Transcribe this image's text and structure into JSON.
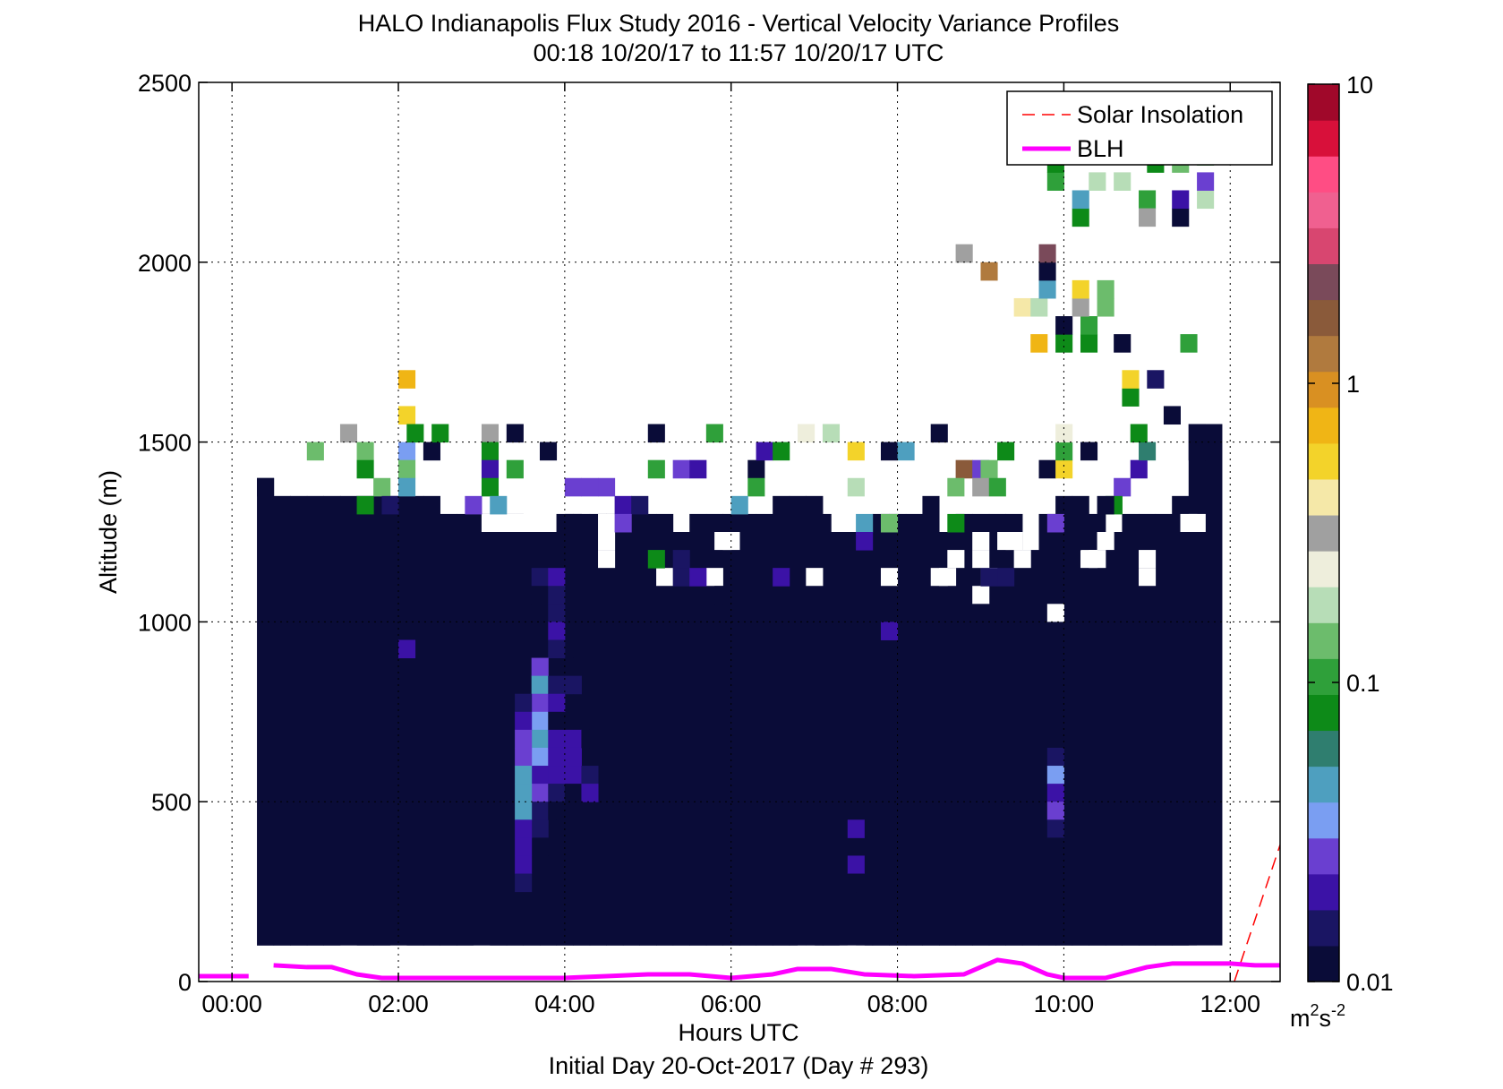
{
  "chart_data": {
    "type": "heatmap",
    "title": "HALO Indianapolis Flux Study 2016 - Vertical Velocity Variance Profiles",
    "subtitle": "00:18 10/20/17 to 11:57 10/20/17  UTC",
    "xlabel": "Hours UTC",
    "footer": "Initial Day 20-Oct-2017 (Day # 293)",
    "ylabel": "Altitude (m)",
    "xlim": [
      -0.4,
      12.6
    ],
    "ylim": [
      0,
      2500
    ],
    "x_ticks": [
      "00:00",
      "02:00",
      "04:00",
      "06:00",
      "08:00",
      "10:00",
      "12:00"
    ],
    "x_tick_values": [
      0,
      2,
      4,
      6,
      8,
      10,
      12
    ],
    "y_ticks": [
      "0",
      "500",
      "1000",
      "1500",
      "2000",
      "2500"
    ],
    "y_tick_values": [
      0,
      500,
      1000,
      1500,
      2000,
      2500
    ],
    "grid": true,
    "color_scale": "log",
    "colorbar_ticks": [
      "10",
      "1",
      "0.1",
      "0.01"
    ],
    "colorbar_tick_values": [
      10,
      1,
      0.1,
      0.01
    ],
    "colorbar_unit": "m²s⁻²",
    "colorbar_unit_base": "m",
    "colorbar_unit_sup1": "2",
    "colorbar_unit_mid": "s",
    "colorbar_unit_sup2": "-2",
    "colorbar_range": [
      0.01,
      10
    ],
    "colorbar_colors": [
      "#0a0c38",
      "#1a1563",
      "#3b12a6",
      "#6a3fd0",
      "#7a9ef2",
      "#4e9fbf",
      "#2f7e6f",
      "#0d8a18",
      "#2fa03a",
      "#6cbc6c",
      "#b7ddb7",
      "#eeeedc",
      "#a0a0a0",
      "#f5e8a8",
      "#f3d32a",
      "#f0b515",
      "#d99022",
      "#b07a3e",
      "#8a5a3a",
      "#7a4a5a",
      "#d84670",
      "#f06090",
      "#ff4d84",
      "#d8103a",
      "#a0082a"
    ],
    "legend": [
      {
        "name": "Solar Insolation",
        "color": "#ff0000",
        "style": "dashed"
      },
      {
        "name": "BLH",
        "color": "#ff00ff",
        "style": "solid"
      }
    ],
    "legend_position": "top-right",
    "time_bin_hours": 0.2,
    "altitude_bin_m": 50,
    "background_variance": 0.01,
    "background_region": {
      "x_start": 0.3,
      "x_end": 11.9,
      "y_bottom": 100,
      "profile_top": [
        1400,
        1350,
        1350,
        1350,
        1350,
        1350,
        1350,
        1350,
        1350,
        1350,
        1350,
        1300,
        1300,
        1300,
        1300,
        1300,
        1250,
        1250,
        1300,
        1300,
        1300,
        1300,
        1300,
        1300,
        1300,
        1250,
        1300,
        1300,
        1300,
        1300,
        1300,
        1350,
        1350,
        1350,
        1250,
        1250,
        1200,
        1300,
        1300,
        1300,
        1350,
        1250,
        1300,
        1300,
        1300,
        1300,
        1200,
        1300,
        1350,
        1350,
        1300,
        1250,
        1300,
        1300,
        1300,
        1350,
        1550,
        1550
      ]
    },
    "gaps": [
      [
        1.3,
        0
      ],
      [
        1.9,
        0
      ],
      [
        2.9,
        0
      ],
      [
        6.8,
        0
      ],
      [
        7.3,
        0
      ],
      [
        7.4,
        0
      ],
      [
        11.5,
        0
      ],
      [
        11.6,
        0
      ],
      [
        11.7,
        0
      ],
      [
        11.8,
        0
      ],
      [
        5.1,
        1100
      ],
      [
        5.7,
        1100
      ],
      [
        6.9,
        1100
      ],
      [
        7.8,
        1100
      ],
      [
        8.4,
        1100
      ],
      [
        8.5,
        1100
      ],
      [
        9.0,
        1100
      ],
      [
        10.9,
        1100
      ],
      [
        4.4,
        1150
      ],
      [
        8.6,
        1150
      ],
      [
        8.9,
        1150
      ],
      [
        9.4,
        1150
      ],
      [
        10.2,
        1150
      ],
      [
        10.3,
        1150
      ],
      [
        10.9,
        1150
      ],
      [
        8.9,
        1050
      ],
      [
        9.8,
        1000
      ],
      [
        3.0,
        1250
      ],
      [
        3.1,
        1250
      ],
      [
        3.2,
        1250
      ],
      [
        3.3,
        1250
      ],
      [
        3.4,
        1250
      ],
      [
        4.4,
        1250
      ],
      [
        4.4,
        1200
      ],
      [
        5.8,
        1200
      ],
      [
        5.9,
        1200
      ],
      [
        8.9,
        1200
      ],
      [
        9.2,
        1200
      ],
      [
        9.3,
        1200
      ],
      [
        10.4,
        1200
      ],
      [
        11.4,
        1250
      ],
      [
        11.5,
        1250
      ]
    ],
    "cells": [
      {
        "x": 0.3,
        "y": 1350,
        "v": 0.01
      },
      {
        "x": 2.0,
        "y": 900,
        "v": 0.02
      },
      {
        "x": 3.6,
        "y": 1100,
        "v": 0.014
      },
      {
        "x": 3.6,
        "y": 1050,
        "v": 0.012
      },
      {
        "x": 3.6,
        "y": 1000,
        "v": 0.012
      },
      {
        "x": 3.6,
        "y": 950,
        "v": 0.011
      },
      {
        "x": 3.8,
        "y": 1100,
        "v": 0.018
      },
      {
        "x": 3.8,
        "y": 1050,
        "v": 0.015
      },
      {
        "x": 3.8,
        "y": 1000,
        "v": 0.016
      },
      {
        "x": 3.8,
        "y": 950,
        "v": 0.02
      },
      {
        "x": 3.8,
        "y": 900,
        "v": 0.016
      },
      {
        "x": 3.6,
        "y": 850,
        "v": 0.03
      },
      {
        "x": 3.6,
        "y": 800,
        "v": 0.04
      },
      {
        "x": 3.6,
        "y": 750,
        "v": 0.027
      },
      {
        "x": 3.6,
        "y": 700,
        "v": 0.033
      },
      {
        "x": 3.6,
        "y": 650,
        "v": 0.045
      },
      {
        "x": 3.6,
        "y": 600,
        "v": 0.035
      },
      {
        "x": 3.6,
        "y": 550,
        "v": 0.02
      },
      {
        "x": 3.6,
        "y": 500,
        "v": 0.026
      },
      {
        "x": 3.6,
        "y": 450,
        "v": 0.016
      },
      {
        "x": 3.6,
        "y": 400,
        "v": 0.017
      },
      {
        "x": 3.6,
        "y": 350,
        "v": 0.012
      },
      {
        "x": 3.4,
        "y": 750,
        "v": 0.017
      },
      {
        "x": 3.4,
        "y": 700,
        "v": 0.022
      },
      {
        "x": 3.4,
        "y": 650,
        "v": 0.025
      },
      {
        "x": 3.4,
        "y": 600,
        "v": 0.026
      },
      {
        "x": 3.4,
        "y": 550,
        "v": 0.04
      },
      {
        "x": 3.4,
        "y": 500,
        "v": 0.04
      },
      {
        "x": 3.4,
        "y": 450,
        "v": 0.045
      },
      {
        "x": 3.4,
        "y": 400,
        "v": 0.022
      },
      {
        "x": 3.4,
        "y": 350,
        "v": 0.021
      },
      {
        "x": 3.4,
        "y": 300,
        "v": 0.02
      },
      {
        "x": 3.4,
        "y": 250,
        "v": 0.015
      },
      {
        "x": 3.8,
        "y": 800,
        "v": 0.014
      },
      {
        "x": 3.8,
        "y": 750,
        "v": 0.02
      },
      {
        "x": 3.8,
        "y": 700,
        "v": 0.013
      },
      {
        "x": 3.8,
        "y": 650,
        "v": 0.018
      },
      {
        "x": 3.8,
        "y": 600,
        "v": 0.02
      },
      {
        "x": 3.8,
        "y": 550,
        "v": 0.02
      },
      {
        "x": 3.8,
        "y": 500,
        "v": 0.014
      },
      {
        "x": 3.8,
        "y": 450,
        "v": 0.013
      },
      {
        "x": 4.0,
        "y": 850,
        "v": 0.011
      },
      {
        "x": 4.0,
        "y": 800,
        "v": 0.017
      },
      {
        "x": 4.0,
        "y": 650,
        "v": 0.018
      },
      {
        "x": 4.0,
        "y": 600,
        "v": 0.019
      },
      {
        "x": 4.0,
        "y": 550,
        "v": 0.019
      },
      {
        "x": 4.0,
        "y": 500,
        "v": 0.012
      },
      {
        "x": 4.2,
        "y": 650,
        "v": 0.013
      },
      {
        "x": 4.2,
        "y": 550,
        "v": 0.014
      },
      {
        "x": 4.2,
        "y": 500,
        "v": 0.022
      },
      {
        "x": 7.4,
        "y": 450,
        "v": 0.011
      },
      {
        "x": 7.4,
        "y": 400,
        "v": 0.018
      },
      {
        "x": 7.4,
        "y": 300,
        "v": 0.021
      },
      {
        "x": 7.4,
        "y": 250,
        "v": 0.012
      },
      {
        "x": 7.8,
        "y": 1000,
        "v": 0.011
      },
      {
        "x": 7.8,
        "y": 950,
        "v": 0.019
      },
      {
        "x": 9.8,
        "y": 600,
        "v": 0.014
      },
      {
        "x": 9.8,
        "y": 550,
        "v": 0.033
      },
      {
        "x": 9.8,
        "y": 500,
        "v": 0.022
      },
      {
        "x": 9.8,
        "y": 450,
        "v": 0.025
      },
      {
        "x": 9.8,
        "y": 400,
        "v": 0.015
      },
      {
        "x": 9.8,
        "y": 350,
        "v": 0.011
      },
      {
        "x": 1.3,
        "y": 1500,
        "v": 0.3
      },
      {
        "x": 0.9,
        "y": 1450,
        "v": 0.13
      },
      {
        "x": 1.5,
        "y": 1450,
        "v": 0.15
      },
      {
        "x": 2.0,
        "y": 1450,
        "v": 0.035
      },
      {
        "x": 2.3,
        "y": 1450,
        "v": 0.011
      },
      {
        "x": 1.5,
        "y": 1400,
        "v": 0.08
      },
      {
        "x": 2.0,
        "y": 1400,
        "v": 0.15
      },
      {
        "x": 1.7,
        "y": 1350,
        "v": 0.13
      },
      {
        "x": 2.0,
        "y": 1350,
        "v": 0.04
      },
      {
        "x": 1.5,
        "y": 1300,
        "v": 0.08
      },
      {
        "x": 1.8,
        "y": 1300,
        "v": 0.014
      },
      {
        "x": 2.0,
        "y": 1650,
        "v": 0.8
      },
      {
        "x": 2.0,
        "y": 1550,
        "v": 0.6
      },
      {
        "x": 2.1,
        "y": 1500,
        "v": 0.08
      },
      {
        "x": 2.4,
        "y": 1500,
        "v": 0.08
      },
      {
        "x": 3.0,
        "y": 1500,
        "v": 0.3
      },
      {
        "x": 3.3,
        "y": 1500,
        "v": 0.011
      },
      {
        "x": 3.0,
        "y": 1450,
        "v": 0.08
      },
      {
        "x": 3.7,
        "y": 1450,
        "v": 0.011
      },
      {
        "x": 3.0,
        "y": 1400,
        "v": 0.018
      },
      {
        "x": 3.3,
        "y": 1400,
        "v": 0.1
      },
      {
        "x": 3.0,
        "y": 1350,
        "v": 0.08
      },
      {
        "x": 2.8,
        "y": 1300,
        "v": 0.025
      },
      {
        "x": 3.1,
        "y": 1300,
        "v": 0.045
      },
      {
        "x": 4.0,
        "y": 1250,
        "v": 0.013
      },
      {
        "x": 4.0,
        "y": 1350,
        "v": 0.03
      },
      {
        "x": 4.2,
        "y": 1350,
        "v": 0.03
      },
      {
        "x": 4.4,
        "y": 1350,
        "v": 0.03
      },
      {
        "x": 4.6,
        "y": 1300,
        "v": 0.021
      },
      {
        "x": 4.8,
        "y": 1300,
        "v": 0.016
      },
      {
        "x": 4.6,
        "y": 1250,
        "v": 0.027
      },
      {
        "x": 5.0,
        "y": 1150,
        "v": 0.08
      },
      {
        "x": 5.3,
        "y": 1150,
        "v": 0.015
      },
      {
        "x": 5.3,
        "y": 1100,
        "v": 0.014
      },
      {
        "x": 5.5,
        "y": 1100,
        "v": 0.022
      },
      {
        "x": 5.8,
        "y": 1050,
        "v": 0.013
      },
      {
        "x": 5.0,
        "y": 1500,
        "v": 0.011
      },
      {
        "x": 5.7,
        "y": 1500,
        "v": 0.12
      },
      {
        "x": 5.0,
        "y": 1400,
        "v": 0.1
      },
      {
        "x": 5.3,
        "y": 1400,
        "v": 0.025
      },
      {
        "x": 5.5,
        "y": 1400,
        "v": 0.02
      },
      {
        "x": 6.2,
        "y": 1400,
        "v": 0.011
      },
      {
        "x": 6.2,
        "y": 1350,
        "v": 0.1
      },
      {
        "x": 6.0,
        "y": 1300,
        "v": 0.04
      },
      {
        "x": 6.3,
        "y": 1450,
        "v": 0.02
      },
      {
        "x": 6.5,
        "y": 1450,
        "v": 0.08
      },
      {
        "x": 6.8,
        "y": 1500,
        "v": 0.25
      },
      {
        "x": 7.1,
        "y": 1500,
        "v": 0.2
      },
      {
        "x": 6.5,
        "y": 1100,
        "v": 0.018
      },
      {
        "x": 7.0,
        "y": 1250,
        "v": 0.013
      },
      {
        "x": 7.4,
        "y": 1450,
        "v": 0.5
      },
      {
        "x": 7.4,
        "y": 1350,
        "v": 0.2
      },
      {
        "x": 7.5,
        "y": 1250,
        "v": 0.04
      },
      {
        "x": 7.8,
        "y": 1250,
        "v": 0.13
      },
      {
        "x": 7.5,
        "y": 1200,
        "v": 0.02
      },
      {
        "x": 7.8,
        "y": 1450,
        "v": 0.011
      },
      {
        "x": 8.0,
        "y": 1450,
        "v": 0.05
      },
      {
        "x": 8.4,
        "y": 1500,
        "v": 0.011
      },
      {
        "x": 8.7,
        "y": 1400,
        "v": 1.5
      },
      {
        "x": 8.9,
        "y": 1400,
        "v": 0.03
      },
      {
        "x": 9.0,
        "y": 1400,
        "v": 0.13
      },
      {
        "x": 8.6,
        "y": 1350,
        "v": 0.14
      },
      {
        "x": 8.9,
        "y": 1350,
        "v": 0.3
      },
      {
        "x": 9.1,
        "y": 1350,
        "v": 0.12
      },
      {
        "x": 9.2,
        "y": 1450,
        "v": 0.08
      },
      {
        "x": 8.6,
        "y": 1250,
        "v": 0.08
      },
      {
        "x": 9.0,
        "y": 1100,
        "v": 0.016
      },
      {
        "x": 9.2,
        "y": 1100,
        "v": 0.016
      },
      {
        "x": 9.8,
        "y": 1250,
        "v": 0.03
      },
      {
        "x": 10.0,
        "y": 1200,
        "v": 0.013
      },
      {
        "x": 9.7,
        "y": 1400,
        "v": 0.011
      },
      {
        "x": 9.9,
        "y": 1400,
        "v": 0.6
      },
      {
        "x": 9.9,
        "y": 1450,
        "v": 0.1
      },
      {
        "x": 10.2,
        "y": 1450,
        "v": 0.011
      },
      {
        "x": 9.9,
        "y": 1500,
        "v": 0.25
      },
      {
        "x": 10.6,
        "y": 1350,
        "v": 0.03
      },
      {
        "x": 10.5,
        "y": 1300,
        "v": 0.08
      },
      {
        "x": 10.4,
        "y": 1300,
        "v": 0.011
      },
      {
        "x": 10.8,
        "y": 1400,
        "v": 0.02
      },
      {
        "x": 10.9,
        "y": 1450,
        "v": 0.06
      },
      {
        "x": 10.8,
        "y": 1500,
        "v": 0.08
      },
      {
        "x": 10.7,
        "y": 1600,
        "v": 0.08
      },
      {
        "x": 10.7,
        "y": 1650,
        "v": 0.6
      },
      {
        "x": 11.0,
        "y": 1650,
        "v": 0.016
      },
      {
        "x": 11.2,
        "y": 1550,
        "v": 0.011
      },
      {
        "x": 11.5,
        "y": 1500,
        "v": 0.011
      },
      {
        "x": 11.5,
        "y": 1450,
        "v": 0.011
      },
      {
        "x": 11.4,
        "y": 1750,
        "v": 0.1
      },
      {
        "x": 10.6,
        "y": 1750,
        "v": 0.011
      },
      {
        "x": 9.6,
        "y": 1750,
        "v": 0.8
      },
      {
        "x": 9.9,
        "y": 1750,
        "v": 0.09
      },
      {
        "x": 10.2,
        "y": 1750,
        "v": 0.09
      },
      {
        "x": 9.9,
        "y": 1800,
        "v": 0.011
      },
      {
        "x": 10.2,
        "y": 1800,
        "v": 0.1
      },
      {
        "x": 9.4,
        "y": 1850,
        "v": 0.4
      },
      {
        "x": 9.6,
        "y": 1850,
        "v": 0.2
      },
      {
        "x": 10.1,
        "y": 1850,
        "v": 0.35
      },
      {
        "x": 10.4,
        "y": 1850,
        "v": 0.14
      },
      {
        "x": 9.7,
        "y": 1900,
        "v": 0.05
      },
      {
        "x": 10.1,
        "y": 1900,
        "v": 0.6
      },
      {
        "x": 10.4,
        "y": 1900,
        "v": 0.13
      },
      {
        "x": 9.7,
        "y": 1950,
        "v": 0.011
      },
      {
        "x": 9.0,
        "y": 1950,
        "v": 1.3
      },
      {
        "x": 9.7,
        "y": 2000,
        "v": 2.0
      },
      {
        "x": 8.7,
        "y": 2000,
        "v": 0.35
      },
      {
        "x": 10.1,
        "y": 2100,
        "v": 0.08
      },
      {
        "x": 10.1,
        "y": 2150,
        "v": 0.05
      },
      {
        "x": 9.8,
        "y": 2200,
        "v": 0.1
      },
      {
        "x": 9.8,
        "y": 2250,
        "v": 0.08
      },
      {
        "x": 10.3,
        "y": 2200,
        "v": 0.16
      },
      {
        "x": 10.6,
        "y": 2200,
        "v": 0.17
      },
      {
        "x": 10.9,
        "y": 2150,
        "v": 0.1
      },
      {
        "x": 10.9,
        "y": 2100,
        "v": 0.3
      },
      {
        "x": 11.3,
        "y": 2100,
        "v": 0.011
      },
      {
        "x": 11.3,
        "y": 2150,
        "v": 0.02
      },
      {
        "x": 11.6,
        "y": 2150,
        "v": 0.18
      },
      {
        "x": 11.6,
        "y": 2200,
        "v": 0.025
      },
      {
        "x": 11.0,
        "y": 2250,
        "v": 0.08
      },
      {
        "x": 11.3,
        "y": 2250,
        "v": 0.13
      },
      {
        "x": 11.6,
        "y": 2270,
        "v": 0.1
      }
    ],
    "blh": {
      "name": "BLH",
      "segments": [
        {
          "x": [
            -0.4,
            0.2
          ],
          "y": [
            15,
            15
          ]
        },
        {
          "x": [
            0.5,
            0.9,
            1.2,
            1.5,
            1.8,
            2.5,
            3.0,
            3.6,
            4.0,
            4.5,
            5.0,
            5.5,
            6.0,
            6.5,
            6.8,
            7.2,
            7.6,
            8.2,
            8.8,
            9.2,
            9.5,
            9.8,
            10.0,
            10.5,
            11.0,
            11.3,
            11.6,
            12.0,
            12.3,
            12.6
          ],
          "y": [
            45,
            40,
            40,
            20,
            10,
            10,
            10,
            10,
            10,
            15,
            20,
            20,
            10,
            20,
            35,
            35,
            20,
            15,
            20,
            60,
            50,
            20,
            10,
            10,
            40,
            50,
            50,
            50,
            45,
            45
          ]
        }
      ]
    },
    "solar_insolation": {
      "name": "Solar Insolation",
      "x": [
        12.05,
        12.6
      ],
      "y": [
        0,
        380
      ]
    }
  }
}
